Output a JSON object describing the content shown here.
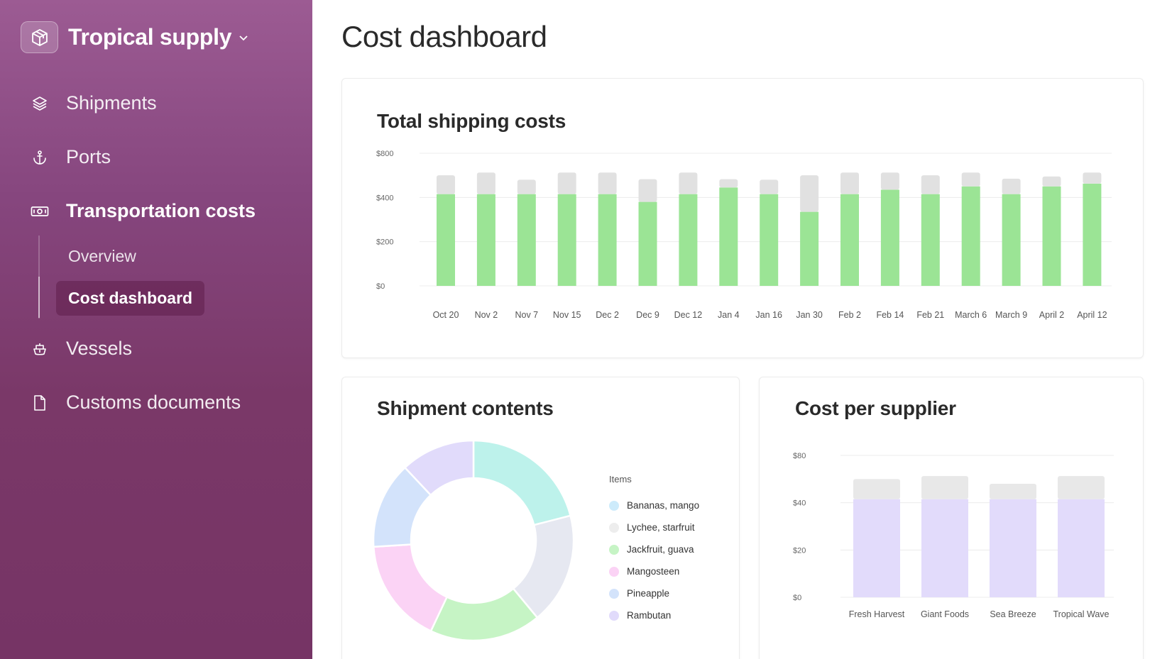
{
  "brand": {
    "name": "Tropical supply",
    "icon": "package-icon"
  },
  "nav": [
    {
      "id": "shipments",
      "label": "Shipments",
      "icon": "layers-icon",
      "active": false
    },
    {
      "id": "ports",
      "label": "Ports",
      "icon": "anchor-icon",
      "active": false
    },
    {
      "id": "transportation",
      "label": "Transportation costs",
      "icon": "money-icon",
      "active": true
    },
    {
      "id": "vessels",
      "label": "Vessels",
      "icon": "ship-icon",
      "active": false
    },
    {
      "id": "customs",
      "label": "Customs documents",
      "icon": "document-icon",
      "active": false
    }
  ],
  "subnav": [
    {
      "label": "Overview",
      "active": false
    },
    {
      "label": "Cost dashboard",
      "active": true
    }
  ],
  "page": {
    "title": "Cost dashboard"
  },
  "colors": {
    "green": "#9be495",
    "gray": "#e1e1e1",
    "purple": "#e2dbfb",
    "sidebar": "#86467e"
  },
  "chart_data": [
    {
      "type": "bar",
      "title": "Total shipping costs",
      "stacked": true,
      "y_ticks": [
        "$0",
        "$200",
        "$400",
        "$800"
      ],
      "categories": [
        "Oct 20",
        "Nov 2",
        "Nov 7",
        "Nov 15",
        "Dec 2",
        "Dec 9",
        "Dec 12",
        "Jan 4",
        "Jan 16",
        "Jan 30",
        "Feb 2",
        "Feb 14",
        "Feb 21",
        "March 6",
        "March 9",
        "April 2",
        "April 12"
      ],
      "series": [
        {
          "color": "#9be495",
          "values": [
            430,
            430,
            430,
            430,
            430,
            380,
            430,
            490,
            430,
            335,
            430,
            470,
            430,
            500,
            430,
            500,
            525
          ]
        },
        {
          "color": "#e1e1e1",
          "values": [
            170,
            195,
            130,
            195,
            195,
            185,
            195,
            75,
            130,
            265,
            195,
            155,
            170,
            125,
            140,
            90,
            100
          ]
        }
      ],
      "grid": true
    },
    {
      "type": "pie",
      "title": "Shipment contents",
      "donut": true,
      "legend_title": "Items",
      "legend_position": "right",
      "slices": [
        {
          "label": "Bananas, mango",
          "value": 21,
          "color": "#bdf2eb"
        },
        {
          "label": "Lychee, starfruit",
          "value": 18,
          "color": "#e6e8f1"
        },
        {
          "label": "Jackfruit, guava",
          "value": 18,
          "color": "#c6f4c5"
        },
        {
          "label": "Mangosteen",
          "value": 17,
          "color": "#fbd3f5"
        },
        {
          "label": "Pineapple",
          "value": 14,
          "color": "#d3e3fb"
        },
        {
          "label": "Rambutan",
          "value": 12,
          "color": "#e1dbfb"
        }
      ],
      "legend_colors": [
        "#cdebfb",
        "#ededed",
        "#c6f4c5",
        "#fbd3f5",
        "#d3e3fb",
        "#e1dbfb"
      ]
    },
    {
      "type": "bar",
      "title": "Cost per supplier",
      "stacked": true,
      "y_ticks": [
        "$0",
        "$20",
        "$40",
        "$80"
      ],
      "categories": [
        "Fresh Harvest",
        "Giant Foods",
        "Sea Breeze",
        "Tropical Wave"
      ],
      "series": [
        {
          "color": "#e2dbfb",
          "values": [
            43,
            43,
            43,
            43
          ]
        },
        {
          "color": "#e8e8e8",
          "values": [
            17,
            19.5,
            13,
            19.5
          ]
        }
      ],
      "grid": true
    }
  ]
}
